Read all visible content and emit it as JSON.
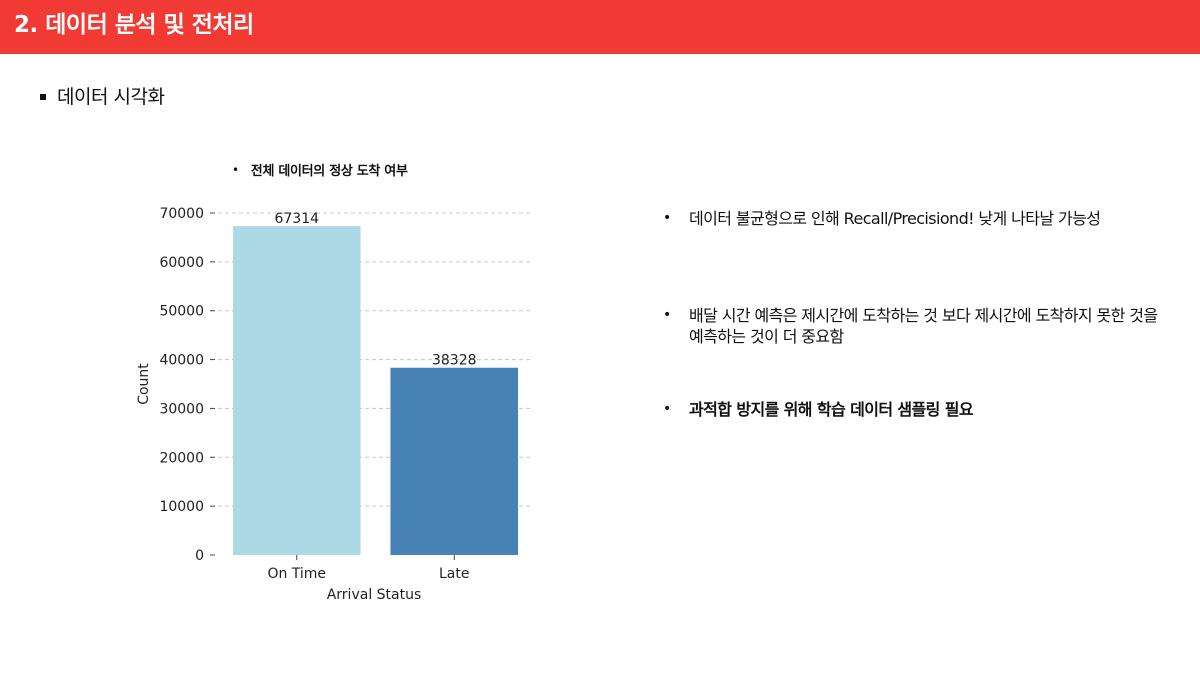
{
  "header": {
    "title": "2. 데이터 분석 및 전처리",
    "color": "#f03a33"
  },
  "section": {
    "heading": "데이터 시각화"
  },
  "chart_caption": "전체 데이터의 정상 도착 여부",
  "chart_data": {
    "type": "bar",
    "categories": [
      "On Time",
      "Late"
    ],
    "values": [
      67314,
      38328
    ],
    "data_labels": [
      "67314",
      "38328"
    ],
    "colors": [
      "#add8e6",
      "#4682b4"
    ],
    "title": "",
    "xlabel": "Arrival Status",
    "ylabel": "Count",
    "ylim": [
      0,
      70000
    ],
    "yticks": [
      0,
      10000,
      20000,
      30000,
      40000,
      50000,
      60000,
      70000
    ],
    "grid": "horizontal dashed"
  },
  "notes": [
    {
      "text": "데이터 불균형으로 인해 Recall/Precisiond! 낮게 나타날 가능성",
      "bold": false
    },
    {
      "text": "배달 시간 예측은 제시간에 도착하는 것 보다 제시간에 도착하지 못한 것을 예측하는 것이 더 중요함",
      "bold": false
    },
    {
      "text": "과적합 방지를 위해 학습 데이터 샘플링 필요",
      "bold": true
    }
  ]
}
